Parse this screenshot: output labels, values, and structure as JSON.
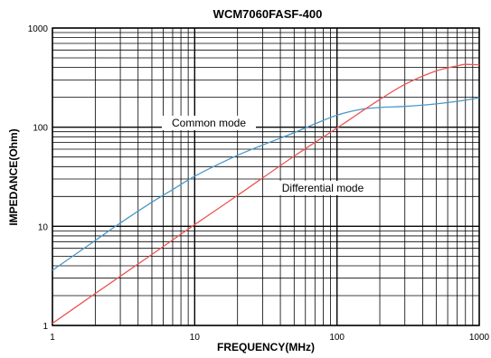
{
  "chart_data": {
    "type": "line",
    "title": "WCM7060FASF-400",
    "xlabel": "FREQUENCY(MHz)",
    "ylabel": "IMPEDANCE(Ohm)",
    "xscale": "log",
    "yscale": "log",
    "xlim": [
      1,
      1000
    ],
    "ylim": [
      1,
      1000
    ],
    "grid": true,
    "legend": "none",
    "x_ticks": [
      "1",
      "10",
      "100",
      "1000"
    ],
    "y_ticks": [
      "1",
      "10",
      "100",
      "1000"
    ],
    "series": [
      {
        "color": "#4a98c9",
        "x": [
          1,
          2,
          3,
          5,
          7,
          10,
          20,
          30,
          50,
          70,
          100,
          150,
          200,
          300,
          500,
          700,
          1000
        ],
        "y": [
          3.6,
          7.2,
          10.8,
          17.5,
          23.5,
          32,
          52,
          66,
          88,
          108,
          132,
          152,
          158,
          162,
          172,
          182,
          198
        ]
      },
      {
        "color": "#ee5555",
        "x": [
          1,
          2,
          5,
          10,
          20,
          50,
          100,
          200,
          300,
          500,
          700,
          800,
          1000
        ],
        "y": [
          1.05,
          2.1,
          5.2,
          10.4,
          20.5,
          51,
          98,
          190,
          270,
          370,
          415,
          430,
          425
        ]
      }
    ],
    "annotations": [
      {
        "text": "Common mode"
      },
      {
        "text": "Differential mode"
      }
    ]
  }
}
